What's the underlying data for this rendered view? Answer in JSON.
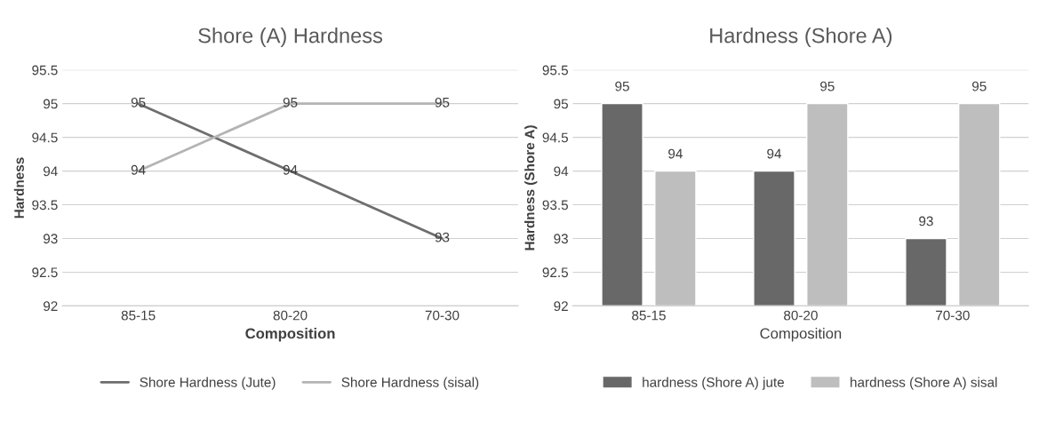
{
  "chart_data": [
    {
      "type": "line",
      "title": "Shore (A) Hardness",
      "xlabel": "Composition",
      "ylabel": "Hardness",
      "categories": [
        "85-15",
        "80-20",
        "70-30"
      ],
      "series": [
        {
          "name": "Shore Hardness (Jute)",
          "color": "#6e6e6e",
          "values": [
            95,
            94,
            93
          ]
        },
        {
          "name": "Shore Hardness (sisal)",
          "color": "#b4b4b4",
          "values": [
            94,
            95,
            95
          ]
        }
      ],
      "ylim": [
        92,
        95.5
      ],
      "yticks": [
        92,
        92.5,
        93,
        93.5,
        94,
        94.5,
        95,
        95.5
      ],
      "grid": "y",
      "legend": "bottom",
      "data_labels": true,
      "marker": "none",
      "line_style": "solid"
    },
    {
      "type": "bar",
      "title": "Hardness (Shore A)",
      "xlabel": "Composition",
      "ylabel": "Hardness (Shore A)",
      "categories": [
        "85-15",
        "80-20",
        "70-30"
      ],
      "series": [
        {
          "name": "hardness (Shore A) jute",
          "color": "#686868",
          "values": [
            95,
            94,
            93
          ]
        },
        {
          "name": "hardness (Shore A) sisal",
          "color": "#bebebe",
          "values": [
            94,
            95,
            95
          ]
        }
      ],
      "ylim": [
        92,
        95.5
      ],
      "yticks": [
        92,
        92.5,
        93,
        93.5,
        94,
        94.5,
        95,
        95.5
      ],
      "grid": "y",
      "legend": "bottom",
      "data_labels": true
    }
  ]
}
